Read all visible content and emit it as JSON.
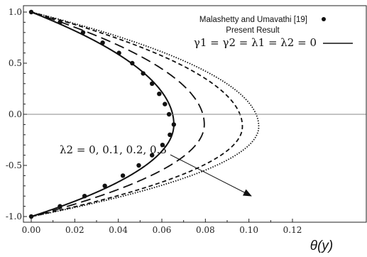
{
  "chart_data": {
    "type": "line",
    "title": "",
    "xlabel": "θ(y)",
    "ylabel": "",
    "xlim": [
      0.0,
      0.12
    ],
    "ylim": [
      -1.0,
      1.0
    ],
    "x_ticks": [
      "0.00",
      "0.02",
      "0.04",
      "0.06",
      "0.08",
      "0.10",
      "0.12"
    ],
    "y_ticks": [
      "-1.0",
      "-0.5",
      "0.0",
      "0.5",
      "1.0"
    ],
    "grid": false,
    "reference_line_y": 0.0,
    "legend": {
      "placement": "top-right",
      "entries": [
        {
          "label": "Malashetty and Umavathi [19]",
          "marker": "dot"
        },
        {
          "label": "Present Result",
          "marker": "none"
        },
        {
          "label": "γ1 = γ2 = λ1 = λ2 = 0",
          "marker": "solid-line"
        }
      ]
    },
    "annotation": "λ2 = 0, 0.1, 0.2, 0.3",
    "series": [
      {
        "name": "λ2 = 0",
        "style": "solid",
        "peak": 0.0655,
        "peak_y": -0.1
      },
      {
        "name": "λ2 = 0.1",
        "style": "long-dash",
        "peak": 0.0795,
        "peak_y": -0.1
      },
      {
        "name": "λ2 = 0.2",
        "style": "short-dash",
        "peak": 0.097,
        "peak_y": -0.12
      },
      {
        "name": "λ2 = 0.3",
        "style": "dotted",
        "peak": 0.1045,
        "peak_y": -0.12
      }
    ],
    "reference_points": {
      "label": "Malashetty and Umavathi [19]",
      "y": [
        1.0,
        0.9,
        0.8,
        0.7,
        0.6,
        0.5,
        0.4,
        0.3,
        0.2,
        0.1,
        0.0,
        -0.1,
        -0.2,
        -0.3,
        -0.4,
        -0.5,
        -0.6,
        -0.7,
        -0.8,
        -0.9,
        -1.0
      ],
      "x": [
        0.0,
        0.0132,
        0.0238,
        0.0328,
        0.0403,
        0.0464,
        0.0514,
        0.0555,
        0.0588,
        0.0614,
        0.0633,
        0.0655,
        0.0637,
        0.0603,
        0.0555,
        0.0494,
        0.0421,
        0.0338,
        0.0245,
        0.0132,
        0.0
      ]
    }
  }
}
